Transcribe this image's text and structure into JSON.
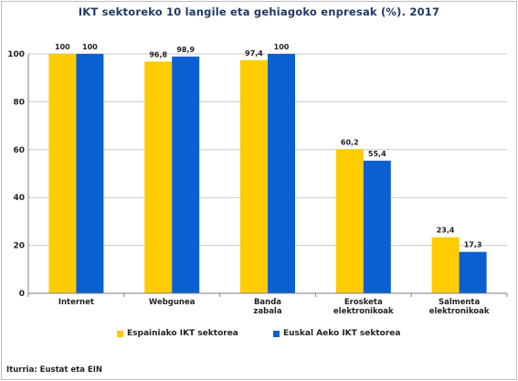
{
  "title": "IKT sektoreko 10 langile eta gehiagoko enpresak (%). 2017",
  "source": "Iturria: Eustat eta EIN",
  "colors": {
    "series_1": "#FFCC00",
    "series_2": "#0A5FD1",
    "grid": "#c8c8c8",
    "axis": "#7f7f7f"
  },
  "chart_data": {
    "type": "bar",
    "title": "IKT sektoreko 10 langile eta gehiagoko enpresak (%). 2017",
    "categories": [
      [
        "Internet"
      ],
      [
        "Webgunea"
      ],
      [
        "Banda",
        "zabala"
      ],
      [
        "Erosketa",
        "elektronikoak"
      ],
      [
        "Salmenta",
        "elektronikoak"
      ]
    ],
    "series": [
      {
        "name": "Espainiako  IKT sektorea",
        "values": [
          100,
          96.8,
          97.4,
          60.2,
          23.4
        ],
        "labels": [
          "100",
          "96,8",
          "97,4",
          "60,2",
          "23,4"
        ]
      },
      {
        "name": "Euskal Aeko  IKT sektorea",
        "values": [
          100,
          98.9,
          100,
          55.4,
          17.3
        ],
        "labels": [
          "100",
          "98,9",
          "100",
          "55,4",
          "17,3"
        ]
      }
    ],
    "yticks": [
      0,
      20,
      40,
      60,
      80,
      100
    ],
    "ylim": [
      0,
      100
    ],
    "xlabel": "",
    "ylabel": "",
    "grid": true,
    "legend_position": "bottom"
  }
}
